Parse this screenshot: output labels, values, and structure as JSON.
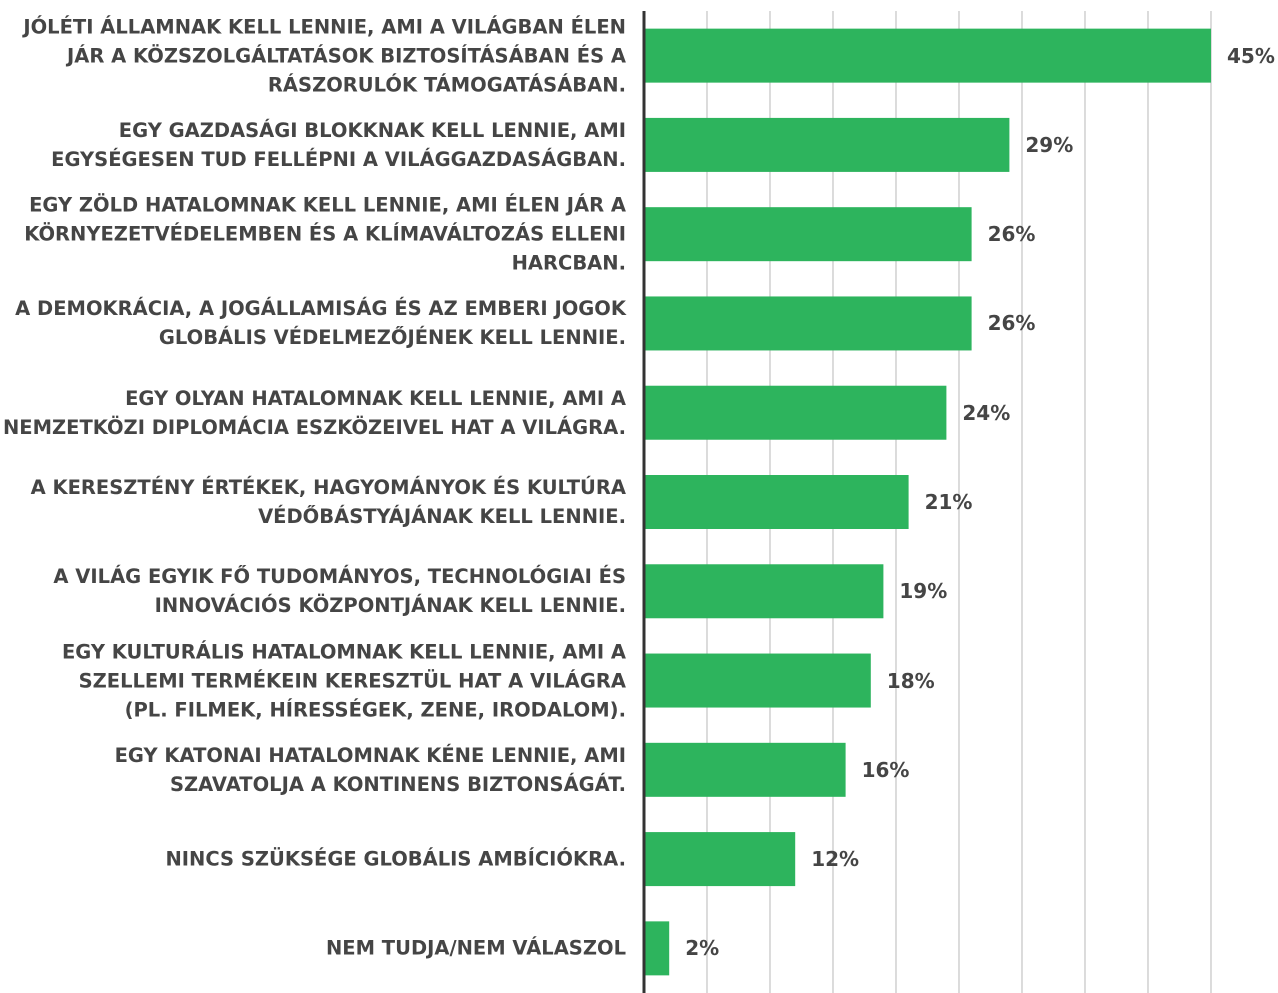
{
  "chart_data": {
    "type": "barh",
    "categories": [
      "JÓLÉTI ÁLLAMNAK KELL LENNIE, AMI A VILÁGBAN ÉLEN\nJÁR A KÖZSZOLGÁLTATÁSOK BIZTOSÍTÁSÁBAN ÉS A\nRÁSZORULÓK TÁMOGATÁSÁBAN.",
      "EGY GAZDASÁGI BLOKKNAK KELL LENNIE, AMI\nEGYSÉGESEN TUD FELLÉPNI A VILÁGGAZDASÁGBAN.",
      "EGY ZÖLD HATALOMNAK KELL LENNIE, AMI ÉLEN JÁR A\nKÖRNYEZETVÉDELEMBEN ÉS A KLÍMAVÁLTOZÁS ELLENI\nHARCBAN.",
      "A DEMOKRÁCIA, A JOGÁLLAMISÁG ÉS AZ EMBERI JOGOK\nGLOBÁLIS VÉDELMEZŐJÉNEK KELL LENNIE.",
      "EGY OLYAN HATALOMNAK KELL LENNIE, AMI A\nNEMZETKÖZI DIPLOMÁCIA ESZKÖZEIVEL HAT A VILÁGRA.",
      "A KERESZTÉNY ÉRTÉKEK, HAGYOMÁNYOK ÉS KULTÚRA\nVÉDŐBÁSTYÁJÁNAK KELL LENNIE.",
      "A VILÁG EGYIK FŐ TUDOMÁNYOS, TECHNOLÓGIAI ÉS\nINNOVÁCIÓS KÖZPONTJÁNAK KELL LENNIE.",
      "EGY KULTURÁLIS HATALOMNAK KELL LENNIE, AMI A\nSZELLEMI TERMÉKEIN KERESZTÜL HAT A VILÁGRA\n(PL. FILMEK, HÍRESSÉGEK, ZENE, IRODALOM).",
      "EGY KATONAI HATALOMNAK KÉNE LENNIE, AMI\nSZAVATOLJA A KONTINENS BIZTONSÁGÁT.",
      "NINCS SZÜKSÉGE GLOBÁLIS AMBÍCIÓKRA.",
      "NEM TUDJA/NEM VÁLASZOL"
    ],
    "values": [
      45,
      29,
      26,
      26,
      24,
      21,
      19,
      18,
      16,
      12,
      2
    ],
    "value_labels": [
      "45%",
      "29%",
      "26%",
      "26%",
      "24%",
      "21%",
      "19%",
      "18%",
      "16%",
      "12%",
      "2%"
    ],
    "color": "#2db45d",
    "xlim": [
      0,
      45
    ],
    "xticks": [
      0,
      5,
      10,
      15,
      20,
      25,
      30,
      35,
      40,
      45
    ],
    "grid": true
  }
}
